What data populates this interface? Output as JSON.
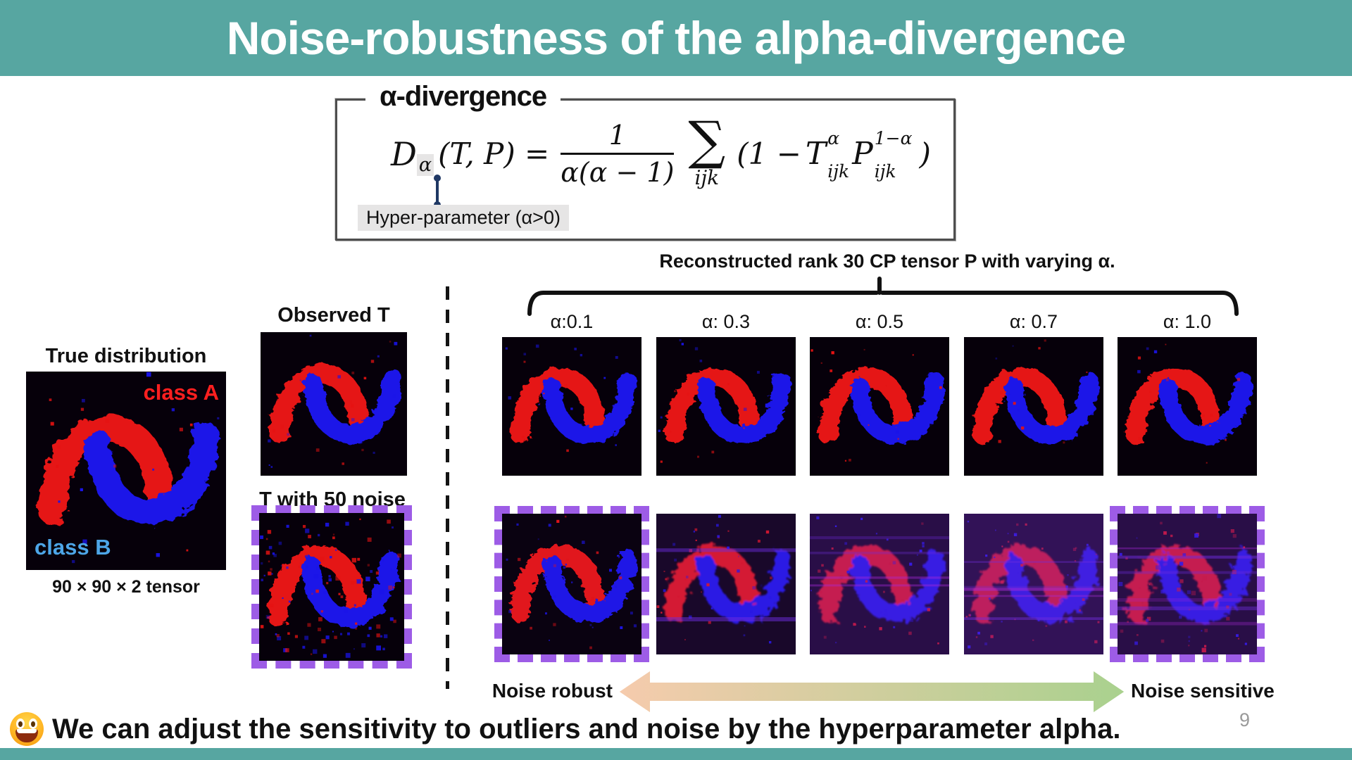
{
  "slide": {
    "title": "Noise-robustness of the alpha-divergence",
    "page_number": "9",
    "footer_statement": "We can adjust the sensitivity to outliers and noise by the hyperparameter alpha.",
    "footer_emoji": "grinning-face"
  },
  "formula_box": {
    "heading": "α-divergence",
    "formula": {
      "lhs_symbol": "D",
      "lhs_subscript": "α",
      "lhs_args": "(T, P) =",
      "frac_num": "1",
      "frac_den": "α(α − 1)",
      "sum": "∑",
      "sum_sub": "ijk",
      "term_open": "(1 −",
      "t_sym": "T",
      "t_sup": "α",
      "t_sub": "ijk",
      "p_sym": "P",
      "p_sup": "1−α",
      "p_sub": "ijk",
      "term_close": ")"
    },
    "hyperparameter_label": "Hyper-parameter (α>0)"
  },
  "left_panel": {
    "true_distribution_label": "True distribution",
    "class_a_label": "class A",
    "class_b_label": "class B",
    "tensor_size_label": "90 × 90 × 2 tensor",
    "observed_label": "Observed T",
    "noisy_label": "T with 50 noise"
  },
  "reconstruction_panel": {
    "caption": "Reconstructed rank 30 CP tensor P with varying α.",
    "alpha_labels": [
      "α:0.1",
      "α: 0.3",
      "α: 0.5",
      "α: 0.7",
      "α: 1.0"
    ],
    "noise_robust_label": "Noise robust",
    "noise_sensitive_label": "Noise sensitive"
  },
  "colors": {
    "teal": "#57a6a1",
    "purple": "#9d5ce6",
    "moon_red": "#e51212",
    "moon_blue": "#1a13e8",
    "class_a": "#ff1f1f",
    "class_b": "#4da6e8",
    "arrow_left": "#f6cbad",
    "arrow_right": "#a9d18e",
    "connector": "#1f3864",
    "label_bg": "#e6e5e5",
    "page_gray": "#9a9a9a",
    "haze": "#7b2fd6"
  }
}
